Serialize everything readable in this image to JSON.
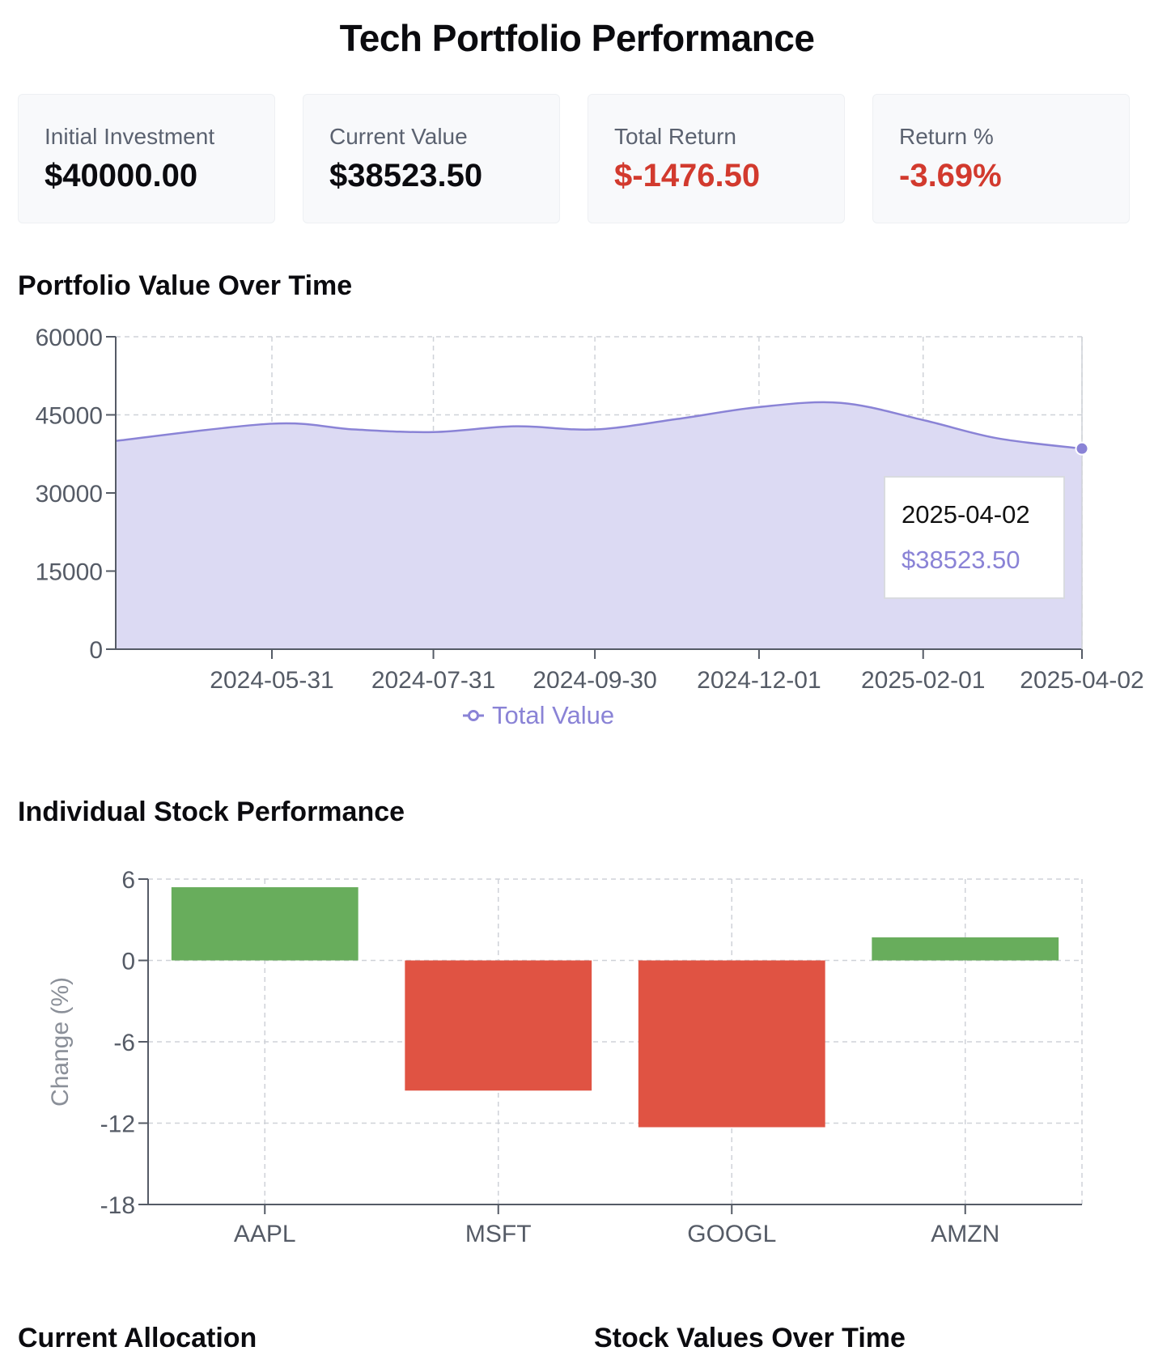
{
  "header": {
    "title": "Tech Portfolio Performance"
  },
  "stats": [
    {
      "label": "Initial Investment",
      "value": "$40000.00",
      "negative": false
    },
    {
      "label": "Current Value",
      "value": "$38523.50",
      "negative": false
    },
    {
      "label": "Total Return",
      "value": "$-1476.50",
      "negative": true
    },
    {
      "label": "Return %",
      "value": "-3.69%",
      "negative": true
    }
  ],
  "sections": {
    "portfolio_value": "Portfolio Value Over Time",
    "stock_performance": "Individual Stock Performance",
    "allocation": "Current Allocation",
    "stock_values": "Stock Values Over Time"
  },
  "tooltip": {
    "date": "2025-04-02",
    "value": "$38523.50"
  },
  "colors": {
    "area_fill": "#dcdaf3",
    "line": "#8a83d6",
    "positive": "#68ad5c",
    "negative": "#e05343",
    "negative_text": "#d23a2e"
  },
  "chart_data": [
    {
      "type": "area",
      "title": "Portfolio Value Over Time",
      "xlabel": "",
      "ylabel": "",
      "ylim": [
        0,
        60000
      ],
      "yticks": [
        "0",
        "15000",
        "30000",
        "45000",
        "60000"
      ],
      "xticks": [
        "2024-05-31",
        "2024-07-31",
        "2024-09-30",
        "2024-12-01",
        "2025-02-01",
        "2025-04-02"
      ],
      "x": [
        "2024-04-02",
        "2024-05-31",
        "2024-07-01",
        "2024-07-31",
        "2024-08-31",
        "2024-09-30",
        "2024-10-31",
        "2024-12-01",
        "2025-01-01",
        "2025-02-01",
        "2025-03-01",
        "2025-04-02"
      ],
      "series": [
        {
          "name": "Total Value",
          "values": [
            40000,
            43300,
            42200,
            41700,
            42800,
            42200,
            44200,
            46500,
            47300,
            44000,
            40500,
            38523.5
          ]
        }
      ],
      "grid": true,
      "legend": "bottom-center"
    },
    {
      "type": "bar",
      "title": "Individual Stock Performance",
      "xlabel": "",
      "ylabel": "Change (%)",
      "ylim": [
        -18,
        6
      ],
      "yticks": [
        "6",
        "0",
        "-6",
        "-12",
        "-18"
      ],
      "categories": [
        "AAPL",
        "MSFT",
        "GOOGL",
        "AMZN"
      ],
      "values": [
        5.4,
        -9.6,
        -12.3,
        1.7
      ],
      "grid": true
    }
  ]
}
